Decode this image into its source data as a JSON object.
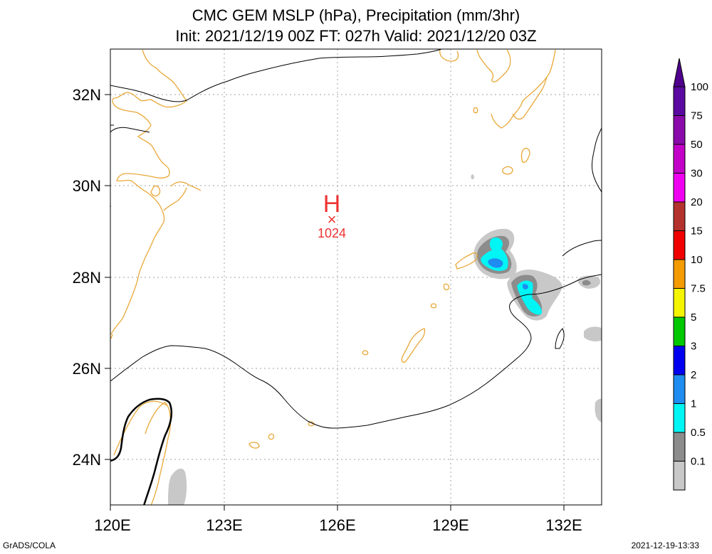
{
  "title": {
    "line1": "CMC GEM MSLP (hPa), Precipitation (mm/3hr)",
    "line2": "Init: 2021/12/19 00Z  FT: 027h  Valid: 2021/12/20 03Z"
  },
  "axes": {
    "lat_labels": [
      "32N",
      "30N",
      "28N",
      "26N",
      "24N"
    ],
    "lon_labels": [
      "120E",
      "123E",
      "126E",
      "129E",
      "132E"
    ]
  },
  "pressure_center": {
    "symbol": "H",
    "marker": "×",
    "value": "1024",
    "color": "#ee3333"
  },
  "colorbar": {
    "labels": [
      "100",
      "75",
      "50",
      "30",
      "20",
      "15",
      "10",
      "7.5",
      "5",
      "3",
      "2",
      "1",
      "0.5",
      "0.1"
    ],
    "colors": [
      "#5a0aa0",
      "#8b0aab",
      "#c300c8",
      "#f000f0",
      "#b4322d",
      "#f00000",
      "#f49b00",
      "#f5f500",
      "#00c800",
      "#0000f0",
      "#1e8cf0",
      "#00f5f5",
      "#8c8c8c",
      "#c8c8c8"
    ],
    "under_color": "#ffffff",
    "over_color": "#50008c"
  },
  "footer": {
    "left": "GrADS/COLA",
    "right": "2021-12-19-13:33"
  }
}
